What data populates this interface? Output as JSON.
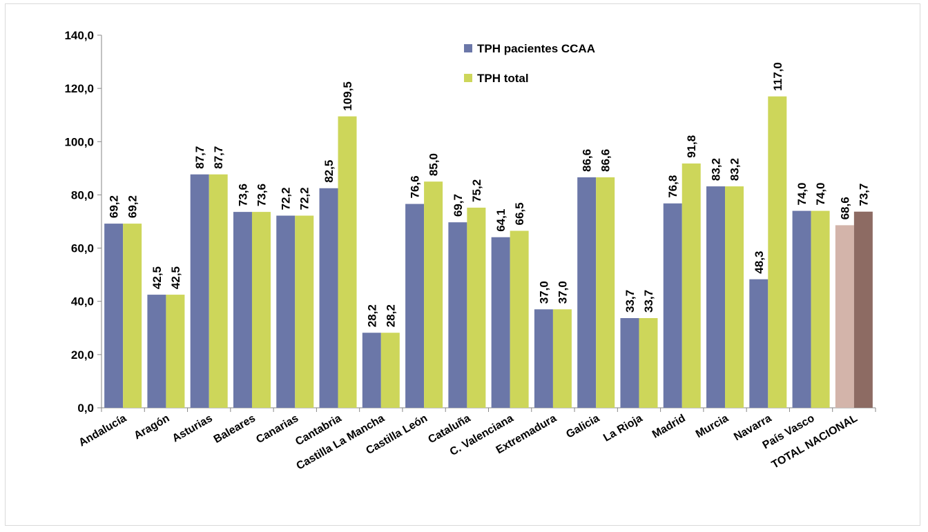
{
  "chart_data": {
    "type": "bar",
    "title": "",
    "xlabel": "",
    "ylabel": "",
    "ylim": [
      0,
      140
    ],
    "y_ticks": [
      "0,0",
      "20,0",
      "40,0",
      "60,0",
      "80,0",
      "100,0",
      "120,0",
      "140,0"
    ],
    "grid": false,
    "legend_position": "top-right",
    "categories": [
      "Andalucía",
      "Aragón",
      "Asturias",
      "Baleares",
      "Canarias",
      "Cantabria",
      "Castilla La Mancha",
      "Castilla León",
      "Cataluña",
      "C. Valenciana",
      "Extremadura",
      "Galicia",
      "La Rioja",
      "Madrid",
      "Murcia",
      "Navarra",
      "País Vasco",
      "TOTAL NACIONAL"
    ],
    "series": [
      {
        "name": "TPH pacientes CCAA",
        "color": "#6b77a8",
        "values": [
          69.2,
          42.5,
          87.7,
          73.6,
          72.2,
          82.5,
          28.2,
          76.6,
          69.7,
          64.1,
          37.0,
          86.6,
          33.7,
          76.8,
          83.2,
          48.3,
          74.0,
          68.6
        ],
        "labels": [
          "69,2",
          "42,5",
          "87,7",
          "73,6",
          "72,2",
          "82,5",
          "28,2",
          "76,6",
          "69,7",
          "64,1",
          "37,0",
          "86,6",
          "33,7",
          "76,8",
          "83,2",
          "48,3",
          "74,0",
          "68,6"
        ]
      },
      {
        "name": "TPH total",
        "color": "#cdd65a",
        "values": [
          69.2,
          42.5,
          87.7,
          73.6,
          72.2,
          109.5,
          28.2,
          85.0,
          75.2,
          66.5,
          37.0,
          86.6,
          33.7,
          91.8,
          83.2,
          117.0,
          74.0,
          73.7
        ],
        "labels": [
          "69,2",
          "42,5",
          "87,7",
          "73,6",
          "72,2",
          "109,5",
          "28,2",
          "85,0",
          "75,2",
          "66,5",
          "37,0",
          "86,6",
          "33,7",
          "91,8",
          "83,2",
          "117,0",
          "74,0",
          "73,7"
        ]
      }
    ],
    "total_colors": [
      "#d3b4aa",
      "#8d6b63"
    ]
  }
}
